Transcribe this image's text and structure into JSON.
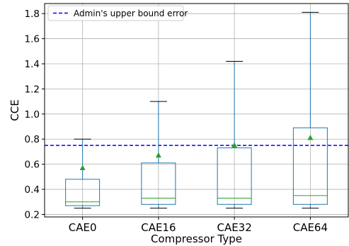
{
  "chart_data": {
    "type": "box",
    "title": "",
    "xlabel": "Compressor Type",
    "ylabel": "CCE",
    "ylim": [
      0.18,
      1.88
    ],
    "yticks": [
      "0.2",
      "0.4",
      "0.6",
      "0.8",
      "1.0",
      "1.2",
      "1.4",
      "1.6",
      "1.8"
    ],
    "categories": [
      "CAE0",
      "CAE16",
      "CAE32",
      "CAE64"
    ],
    "boxes": [
      {
        "whisker_low": 0.25,
        "q1": 0.27,
        "median": 0.3,
        "q3": 0.48,
        "whisker_high": 0.8,
        "mean": 0.57
      },
      {
        "whisker_low": 0.25,
        "q1": 0.28,
        "median": 0.33,
        "q3": 0.61,
        "whisker_high": 1.1,
        "mean": 0.67
      },
      {
        "whisker_low": 0.25,
        "q1": 0.28,
        "median": 0.33,
        "q3": 0.73,
        "whisker_high": 1.42,
        "mean": 0.75
      },
      {
        "whisker_low": 0.25,
        "q1": 0.28,
        "median": 0.35,
        "q3": 0.89,
        "whisker_high": 1.81,
        "mean": 0.81
      }
    ],
    "reference_line": {
      "y": 0.75,
      "label": "Admin's upper bound error",
      "color": "#0000ff",
      "style": "dashed"
    },
    "grid": true,
    "legend_position": "top-left",
    "colors": {
      "box": "#1f77b4",
      "median": "#2ca02c",
      "mean": "#2ca02c",
      "whisker_cap": "#000000"
    }
  }
}
